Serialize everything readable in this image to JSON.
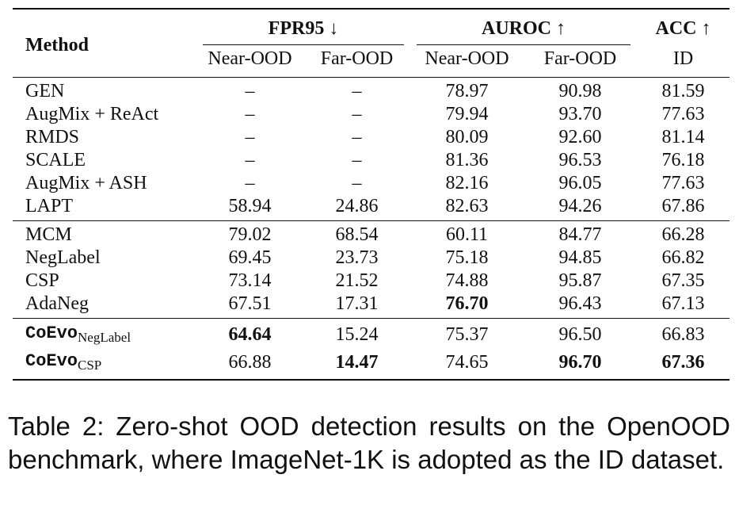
{
  "table": {
    "header": {
      "method": "Method",
      "fpr_group": "FPR95 ↓",
      "auroc_group": "AUROC ↑",
      "acc_group": "ACC ↑",
      "fpr_near": "Near-OOD",
      "fpr_far": "Far-OOD",
      "auroc_near": "Near-OOD",
      "auroc_far": "Far-OOD",
      "acc_id": "ID"
    },
    "block1": [
      {
        "method": "GEN",
        "fpr_near": "–",
        "fpr_far": "–",
        "auroc_near": "78.97",
        "auroc_far": "90.98",
        "acc": "81.59"
      },
      {
        "method": "AugMix + ReAct",
        "fpr_near": "–",
        "fpr_far": "–",
        "auroc_near": "79.94",
        "auroc_far": "93.70",
        "acc": "77.63"
      },
      {
        "method": "RMDS",
        "fpr_near": "–",
        "fpr_far": "–",
        "auroc_near": "80.09",
        "auroc_far": "92.60",
        "acc": "81.14"
      },
      {
        "method": "SCALE",
        "fpr_near": "–",
        "fpr_far": "–",
        "auroc_near": "81.36",
        "auroc_far": "96.53",
        "acc": "76.18"
      },
      {
        "method": "AugMix + ASH",
        "fpr_near": "–",
        "fpr_far": "–",
        "auroc_near": "82.16",
        "auroc_far": "96.05",
        "acc": "77.63"
      },
      {
        "method": "LAPT",
        "fpr_near": "58.94",
        "fpr_far": "24.86",
        "auroc_near": "82.63",
        "auroc_far": "94.26",
        "acc": "67.86"
      }
    ],
    "block2": [
      {
        "method": "MCM",
        "fpr_near": "79.02",
        "fpr_far": "68.54",
        "auroc_near": "60.11",
        "auroc_far": "84.77",
        "acc": "66.28"
      },
      {
        "method": "NegLabel",
        "fpr_near": "69.45",
        "fpr_far": "23.73",
        "auroc_near": "75.18",
        "auroc_far": "94.85",
        "acc": "66.82"
      },
      {
        "method": "CSP",
        "fpr_near": "73.14",
        "fpr_far": "21.52",
        "auroc_near": "74.88",
        "auroc_far": "95.87",
        "acc": "67.35"
      },
      {
        "method": "AdaNeg",
        "fpr_near": "67.51",
        "fpr_far": "17.31",
        "auroc_near": "76.70",
        "auroc_far": "96.43",
        "acc": "67.13"
      }
    ],
    "block3": [
      {
        "method": "CoEvo",
        "method_sub": "NegLabel",
        "fpr_near": "64.64",
        "fpr_far": "15.24",
        "auroc_near": "75.37",
        "auroc_far": "96.50",
        "acc": "66.83"
      },
      {
        "method": "CoEvo",
        "method_sub": "CSP",
        "fpr_near": "66.88",
        "fpr_far": "14.47",
        "auroc_near": "74.65",
        "auroc_far": "96.70",
        "acc": "67.36"
      }
    ]
  },
  "caption": "Table 2: Zero-shot OOD detection results on the OpenOOD benchmark, where ImageNet-1K is adopted as the ID dataset."
}
